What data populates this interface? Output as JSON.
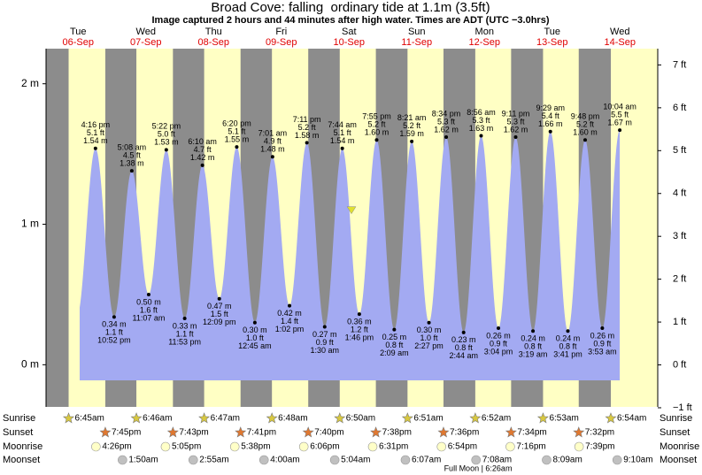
{
  "chart_data": {
    "type": "tide",
    "title": "Broad Cove: falling  ordinary tide at 1.1m (3.5ft)",
    "subtitle": "Image captured 2 hours and 44 minutes after high water. Times are ADT (UTC −3.0hrs)",
    "footer": "Full Moon | 6:26am",
    "current": {
      "height": 1.1
    },
    "ylim": [
      -0.3,
      2.25
    ],
    "yticks": [
      {
        "value": 0,
        "label": "0 m"
      },
      {
        "value": 1,
        "label": "1 m"
      },
      {
        "value": 2,
        "label": "2 m"
      }
    ],
    "y2lim": [
      -0.98,
      7.38
    ],
    "y2ticks": [
      {
        "value": -1,
        "label": "−1 ft"
      },
      {
        "value": 0,
        "label": "0 ft"
      },
      {
        "value": 1,
        "label": "1 ft"
      },
      {
        "value": 2,
        "label": "2 ft"
      },
      {
        "value": 3,
        "label": "3 ft"
      },
      {
        "value": 4,
        "label": "4 ft"
      },
      {
        "value": 5,
        "label": "5 ft"
      },
      {
        "value": 6,
        "label": "6 ft"
      },
      {
        "value": 7,
        "label": "7 ft"
      }
    ],
    "rows": {
      "sunrise": "Sunrise",
      "sunset": "Sunset",
      "moonrise": "Moonrise",
      "moonset": "Moonset"
    },
    "colors": {
      "night": "#8c8c8c",
      "day": "#ffffc4",
      "water": "#a3aaf2",
      "date": "#e00000"
    },
    "days": [
      {
        "dow": "Tue",
        "date": "06-Sep",
        "sunrise": "6:45am",
        "sunset": "7:45pm",
        "moonrise": "4:26pm",
        "moonset": null,
        "tides": [
          {
            "time": "4:16 pm",
            "m": 1.54,
            "m_label": "1.54 m",
            "ft": "5.1 ft"
          },
          {
            "time": "10:52 pm",
            "m": 0.34,
            "m_label": "0.34 m",
            "ft": "1.1 ft"
          }
        ]
      },
      {
        "dow": "Wed",
        "date": "07-Sep",
        "sunrise": "6:46am",
        "sunset": "7:43pm",
        "moonrise": "5:05pm",
        "moonset": "1:50am",
        "tides": [
          {
            "time": "5:08 am",
            "m": 1.38,
            "m_label": "1.38 m",
            "ft": "4.5 ft"
          },
          {
            "time": "11:07 am",
            "m": 0.5,
            "m_label": "0.50 m",
            "ft": "1.6 ft"
          },
          {
            "time": "5:22 pm",
            "m": 1.53,
            "m_label": "1.53 m",
            "ft": "5.0 ft"
          },
          {
            "time": "11:53 pm",
            "m": 0.33,
            "m_label": "0.33 m",
            "ft": "1.1 ft"
          }
        ]
      },
      {
        "dow": "Thu",
        "date": "08-Sep",
        "sunrise": "6:47am",
        "sunset": "7:41pm",
        "moonrise": "5:38pm",
        "moonset": "2:55am",
        "tides": [
          {
            "time": "6:10 am",
            "m": 1.42,
            "m_label": "1.42 m",
            "ft": "4.7 ft"
          },
          {
            "time": "12:09 pm",
            "m": 0.47,
            "m_label": "0.47 m",
            "ft": "1.5 ft"
          },
          {
            "time": "6:20 pm",
            "m": 1.55,
            "m_label": "1.55 m",
            "ft": "5.1 ft"
          }
        ]
      },
      {
        "dow": "Fri",
        "date": "09-Sep",
        "sunrise": "6:48am",
        "sunset": "7:40pm",
        "moonrise": "6:06pm",
        "moonset": "4:00am",
        "tides": [
          {
            "time": "12:45 am",
            "m": 0.3,
            "m_label": "0.30 m",
            "ft": "1.0 ft"
          },
          {
            "time": "7:01 am",
            "m": 1.48,
            "m_label": "1.48 m",
            "ft": "4.9 ft"
          },
          {
            "time": "1:02 pm",
            "m": 0.42,
            "m_label": "0.42 m",
            "ft": "1.4 ft"
          },
          {
            "time": "7:11 pm",
            "m": 1.58,
            "m_label": "1.58 m",
            "ft": "5.2 ft"
          }
        ]
      },
      {
        "dow": "Sat",
        "date": "10-Sep",
        "sunrise": "6:50am",
        "sunset": "7:38pm",
        "moonrise": "6:31pm",
        "moonset": "5:04am",
        "tides": [
          {
            "time": "1:30 am",
            "m": 0.27,
            "m_label": "0.27 m",
            "ft": "0.9 ft"
          },
          {
            "time": "7:44 am",
            "m": 1.54,
            "m_label": "1.54 m",
            "ft": "5.1 ft"
          },
          {
            "time": "1:46 pm",
            "m": 0.36,
            "m_label": "0.36 m",
            "ft": "1.2 ft"
          },
          {
            "time": "7:55 pm",
            "m": 1.6,
            "m_label": "1.60 m",
            "ft": "5.2 ft"
          }
        ]
      },
      {
        "dow": "Sun",
        "date": "11-Sep",
        "sunrise": "6:51am",
        "sunset": "7:36pm",
        "moonrise": "6:54pm",
        "moonset": "6:07am",
        "tides": [
          {
            "time": "2:09 am",
            "m": 0.25,
            "m_label": "0.25 m",
            "ft": "0.8 ft"
          },
          {
            "time": "8:21 am",
            "m": 1.59,
            "m_label": "1.59 m",
            "ft": "5.2 ft"
          },
          {
            "time": "2:27 pm",
            "m": 0.3,
            "m_label": "0.30 m",
            "ft": "1.0 ft"
          },
          {
            "time": "8:34 pm",
            "m": 1.62,
            "m_label": "1.62 m",
            "ft": "5.3 ft"
          }
        ]
      },
      {
        "dow": "Mon",
        "date": "12-Sep",
        "sunrise": "6:52am",
        "sunset": "7:34pm",
        "moonrise": "7:16pm",
        "moonset": "7:08am",
        "tides": [
          {
            "time": "2:44 am",
            "m": 0.23,
            "m_label": "0.23 m",
            "ft": "0.8 ft"
          },
          {
            "time": "8:56 am",
            "m": 1.63,
            "m_label": "1.63 m",
            "ft": "5.3 ft"
          },
          {
            "time": "3:04 pm",
            "m": 0.26,
            "m_label": "0.26 m",
            "ft": "0.9 ft"
          },
          {
            "time": "9:11 pm",
            "m": 1.62,
            "m_label": "1.62 m",
            "ft": "5.3 ft"
          }
        ]
      },
      {
        "dow": "Tue",
        "date": "13-Sep",
        "sunrise": "6:53am",
        "sunset": "7:32pm",
        "moonrise": "7:39pm",
        "moonset": "8:09am",
        "tides": [
          {
            "time": "3:19 am",
            "m": 0.24,
            "m_label": "0.24 m",
            "ft": "0.8 ft"
          },
          {
            "time": "9:29 am",
            "m": 1.66,
            "m_label": "1.66 m",
            "ft": "5.4 ft"
          },
          {
            "time": "3:41 pm",
            "m": 0.24,
            "m_label": "0.24 m",
            "ft": "0.8 ft"
          },
          {
            "time": "9:48 pm",
            "m": 1.6,
            "m_label": "1.60 m",
            "ft": "5.2 ft"
          }
        ]
      },
      {
        "dow": "Wed",
        "date": "14-Sep",
        "sunrise": "6:54am",
        "sunset": null,
        "moonrise": null,
        "moonset": "9:10am",
        "tides": [
          {
            "time": "3:53 am",
            "m": 0.26,
            "m_label": "0.26 m",
            "ft": "0.9 ft"
          },
          {
            "time": "10:04 am",
            "m": 1.67,
            "m_label": "1.67 m",
            "ft": "5.5 ft"
          }
        ]
      }
    ]
  }
}
